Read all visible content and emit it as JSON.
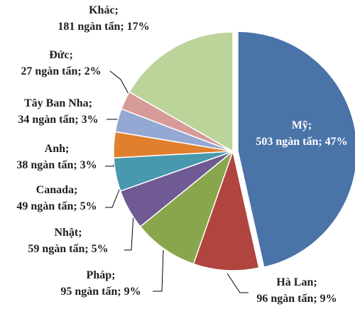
{
  "chart_data": {
    "type": "pie",
    "categories": [
      "Mỹ;",
      "Hà Lan;",
      "Pháp;",
      "Nhật;",
      "Canada;",
      "Anh;",
      "Tây Ban Nha;",
      "Đức;",
      "Khác;"
    ],
    "values": [
      503,
      96,
      95,
      59,
      49,
      38,
      34,
      27,
      181
    ],
    "value_labels": [
      "503 ngàn tấn; 47%",
      "96 ngàn tấn; 9%",
      "95 ngàn tấn; 9%",
      "59 ngàn tấn; 5%",
      "49 ngàn tấn; 5%",
      "38 ngàn tấn; 3%",
      "34 ngàn tấn; 3%",
      "27 ngàn tấn; 2%",
      "181 ngàn tấn; 17%"
    ],
    "colors": [
      "#4a73a8",
      "#b0443f",
      "#89a64c",
      "#6f5a93",
      "#4898ae",
      "#e07f2c",
      "#93a8d2",
      "#d69b98",
      "#bcd39a"
    ]
  }
}
